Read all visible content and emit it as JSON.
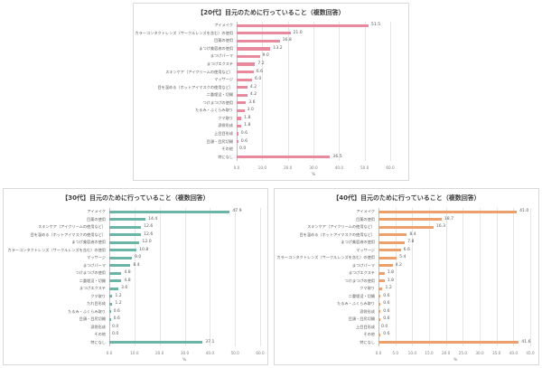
{
  "chart_data": [
    {
      "type": "bar",
      "orientation": "horizontal",
      "title": "【20代】目元のために行っていること（複数回答）",
      "xlabel": "%",
      "ylabel": "",
      "xlim": [
        0,
        60
      ],
      "ticks": [
        "0.0",
        "10.0",
        "20.0",
        "30.0",
        "40.0",
        "50.0",
        "60.0"
      ],
      "color": "#e8899e",
      "grid": true,
      "categories": [
        "アイメイク",
        "カラーコンタクトレンズ（サークルレンズを含む）の使用",
        "目薬の使用",
        "まつげ美容液の使用",
        "まつげパーマ",
        "まつげエクステ",
        "スキンケア（アイクリームの使用など）",
        "マッサージ",
        "目を温める（ホットアイマスクの使用など）",
        "二重埋没・切開",
        "つけまつげの使用",
        "たるみ・ふくらみ取り",
        "クマ取り",
        "涙袋形成",
        "上目目形成",
        "目頭・目尻切開",
        "その他",
        "特になし"
      ],
      "values": [
        51.5,
        21.0,
        16.8,
        13.2,
        9.0,
        7.2,
        6.6,
        6.0,
        4.2,
        4.2,
        3.6,
        3.0,
        1.8,
        1.8,
        0.6,
        0.6,
        0.0,
        36.5
      ]
    },
    {
      "type": "bar",
      "orientation": "horizontal",
      "title": "【30代】目元のために行っていること（複数回答）",
      "xlabel": "%",
      "ylabel": "",
      "xlim": [
        0,
        60
      ],
      "ticks": [
        "0.0",
        "10.0",
        "20.0",
        "30.0",
        "40.0",
        "50.0",
        "60.0"
      ],
      "color": "#6bb5a6",
      "grid": true,
      "categories": [
        "アイメイク",
        "目薬の使用",
        "スキンケア（アイクリームの使用など）",
        "目を温める（ホットアイマスクの使用など）",
        "まつげ美容液の使用",
        "カラーコンタクトレンズ（サークルレンズを含む）の使用",
        "マッサージ",
        "まつげパーマ",
        "つけまつげの使用",
        "二重埋没・切開",
        "まつげエクステ",
        "クマ取り",
        "たれ目形成",
        "たるみ・ふくらみ取り",
        "目頭・目尻切開",
        "涙袋形成",
        "その他",
        "特になし"
      ],
      "values": [
        47.9,
        14.4,
        12.6,
        12.6,
        12.0,
        10.8,
        9.0,
        8.4,
        4.8,
        4.8,
        3.6,
        1.2,
        1.2,
        0.6,
        0.6,
        0.0,
        0.0,
        37.1
      ]
    },
    {
      "type": "bar",
      "orientation": "horizontal",
      "title": "【40代】目元のために行っていること（複数回答）",
      "xlabel": "%",
      "ylabel": "",
      "xlim": [
        0,
        45
      ],
      "ticks": [
        "0.0",
        "5.0",
        "10.0",
        "15.0",
        "20.0",
        "25.0",
        "30.0",
        "35.0",
        "40.0",
        "45.0"
      ],
      "color": "#eda06b",
      "grid": true,
      "categories": [
        "アイメイク",
        "目薬の使用",
        "スキンケア（アイクリームの使用など）",
        "目を温める（ホットアイマスクの使用など）",
        "まつげ美容液の使用",
        "マッサージ",
        "カラーコンタクトレンズ（サークルレンズを含む）の使用",
        "まつげパーマ",
        "まつげエクステ",
        "つけまつげの使用",
        "クマ取り",
        "二重埋没・切開",
        "たるみ・ふくらみ取り",
        "涙袋形成",
        "目頭・目尻切開",
        "上目目形成",
        "その他",
        "特になし"
      ],
      "values": [
        41.0,
        18.7,
        16.3,
        8.4,
        7.8,
        6.6,
        5.4,
        4.2,
        1.8,
        1.8,
        1.2,
        0.6,
        0.6,
        0.6,
        0.6,
        0.0,
        0.6,
        41.6
      ]
    }
  ]
}
